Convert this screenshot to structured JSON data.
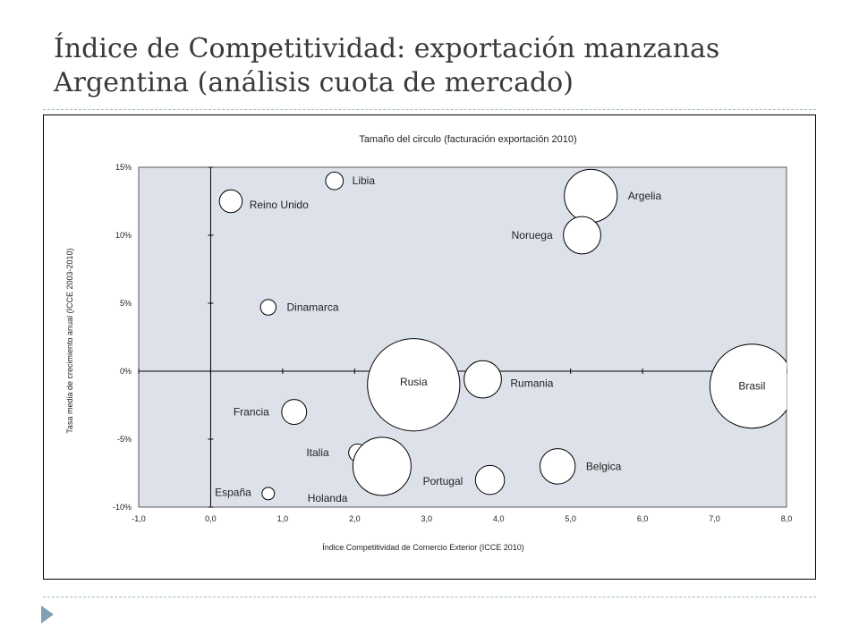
{
  "slide": {
    "title": "Índice de Competitividad: exportación manzanas Argentina (análisis cuota de mercado)"
  },
  "colors": {
    "plot_background": "#dde2ea",
    "bubble_fill": "#ffffff",
    "bubble_stroke": "#000000",
    "rule": "#9fb9c9",
    "bullet": "#7fa1b4"
  },
  "chart_data": {
    "type": "bubble",
    "title": "Tamaño del circulo (facturación  exportación 2010)",
    "xlabel": "Índice Competitividad de Comercio Exterior (ICCE 2010)",
    "ylabel": "Tasa media de crecimiento anual (ICCE 2003-2010)",
    "xlim": [
      -1.0,
      8.0
    ],
    "ylim": [
      -10,
      15
    ],
    "x_ticks": [
      "-1,0",
      "0,0",
      "1,0",
      "2,0",
      "3,0",
      "4,0",
      "5,0",
      "6,0",
      "7,0",
      "8,0"
    ],
    "y_ticks": [
      "-10%",
      "-5%",
      "0%",
      "5%",
      "10%",
      "15%"
    ],
    "size_relative_scale": "radius relative to largest bubble = 1.0",
    "points": [
      {
        "label": "Libia",
        "x": 1.72,
        "y": 14.0,
        "size": 0.17
      },
      {
        "label": "Reino Unido",
        "x": 0.28,
        "y": 12.5,
        "size": 0.22
      },
      {
        "label": "Argelia",
        "x": 5.28,
        "y": 12.9,
        "size": 0.51
      },
      {
        "label": "Noruega",
        "x": 5.16,
        "y": 10.0,
        "size": 0.36
      },
      {
        "label": "Dinamarca",
        "x": 0.8,
        "y": 4.7,
        "size": 0.15
      },
      {
        "label": "Rusia",
        "x": 2.82,
        "y": -1.0,
        "size": 0.89
      },
      {
        "label": "Rumania",
        "x": 3.78,
        "y": -0.6,
        "size": 0.36
      },
      {
        "label": "Brasil",
        "x": 7.52,
        "y": -1.1,
        "size": 0.81
      },
      {
        "label": "Francia",
        "x": 1.16,
        "y": -3.0,
        "size": 0.24
      },
      {
        "label": "Italia",
        "x": 2.04,
        "y": -6.0,
        "size": 0.17
      },
      {
        "label": "Holanda",
        "x": 2.38,
        "y": -7.0,
        "size": 0.56
      },
      {
        "label": "Portugal",
        "x": 3.88,
        "y": -8.0,
        "size": 0.28
      },
      {
        "label": "Belgica",
        "x": 4.82,
        "y": -7.0,
        "size": 0.34
      },
      {
        "label": "España",
        "x": 0.8,
        "y": -9.0,
        "size": 0.12
      }
    ]
  }
}
